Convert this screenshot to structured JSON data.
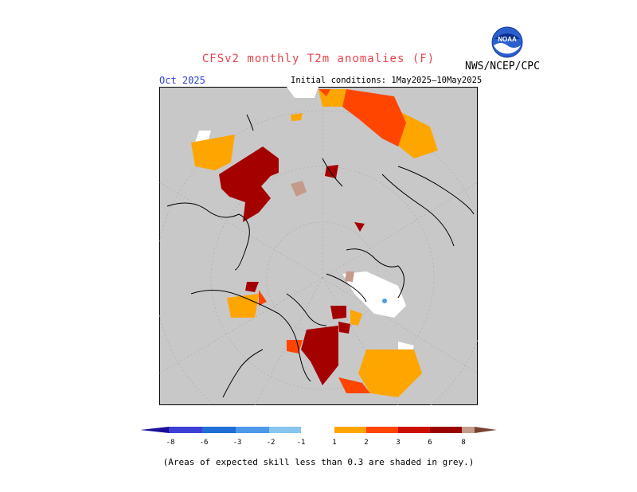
{
  "title": "CFSv2 monthly T2m anomalies (F)",
  "agency": "NWS/NCEP/CPC",
  "logo_text": "NOAA",
  "month": "Oct 2025",
  "initial_conditions": "Initial conditions: 1May2025–10May2025",
  "legend": {
    "labels": [
      "-8",
      "-6",
      "-3",
      "-2",
      "-1",
      "1",
      "2",
      "3",
      "6",
      "8"
    ],
    "colors": [
      "#1a0f9a",
      "#3b3fd6",
      "#1f6fd6",
      "#4e98ea",
      "#87c4ef",
      "#ffffff",
      "#ffa500",
      "#ff4500",
      "#cc1000",
      "#9b0000",
      "#c49a8b",
      "#7a4433"
    ]
  },
  "note": "(Areas of expected skill less than 0.3 are shaded in grey.)",
  "colors": {
    "title": "#e8434d",
    "month": "#2c3fd6",
    "skill_grey": "#c8c8c8",
    "orange": "#ffa500",
    "red_orange": "#ff4500",
    "dark_red": "#a50000",
    "brown": "#c49a8b"
  }
}
